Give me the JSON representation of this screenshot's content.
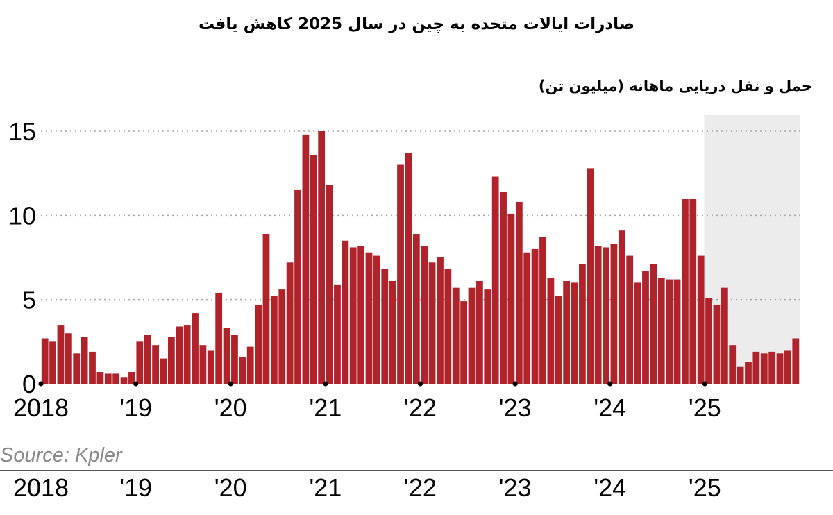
{
  "title": "صادرات ایالات متحده به چین در سال 2025 کاهش یافت",
  "source": "Source: Kpler",
  "colors": {
    "bar": "#b0232a",
    "shade": "#ececec",
    "grid": "#a8a8a8"
  },
  "chart_data": {
    "type": "bar",
    "subtitle": "حمل و نقل دریایی ماهانه (میلیون تن)",
    "x_tick_labels": [
      "2018",
      "'19",
      "'20",
      "'21",
      "'22",
      "'23",
      "'24",
      "'25"
    ],
    "ylim": [
      0,
      15.6
    ],
    "y_ticks": [
      0,
      5,
      10,
      15
    ],
    "grid": "horizontal dotted",
    "shaded_period": "2025",
    "bottom_repeat_labels": [
      "2018",
      "'19",
      "'20",
      "'21",
      "'22",
      "'23",
      "'24",
      "'25"
    ],
    "series": [
      {
        "values": [
          2.7,
          2.5,
          3.5,
          3.0,
          1.8,
          2.8,
          1.9,
          0.7,
          0.6,
          0.6,
          0.4,
          0.7,
          2.5,
          2.9,
          2.3,
          1.5,
          2.8,
          3.4,
          3.5,
          4.2,
          2.3,
          2.0,
          5.4,
          3.3,
          2.9,
          1.6,
          2.2,
          4.7,
          8.9,
          5.2,
          5.6,
          7.2,
          11.5,
          14.8,
          13.6,
          15.0,
          11.8,
          5.9,
          8.5,
          8.1,
          8.2,
          7.8,
          7.6,
          6.8,
          6.1,
          13.0,
          13.7,
          8.9,
          8.2,
          7.2,
          7.5,
          6.8,
          5.7,
          4.9,
          5.7,
          6.1,
          5.6,
          12.3,
          11.4,
          10.1,
          10.8,
          7.8,
          8.0,
          8.7,
          6.3,
          5.2,
          6.1,
          6.0,
          7.1,
          12.8,
          8.2,
          8.1,
          8.3,
          9.1,
          7.6,
          6.0,
          6.7,
          7.1,
          6.3,
          6.2,
          6.2,
          11.0,
          11.0,
          7.6,
          5.1,
          4.7,
          5.7,
          2.3,
          1.0,
          1.3,
          1.9,
          1.8,
          1.9,
          1.8,
          2.0,
          2.7
        ]
      }
    ]
  }
}
